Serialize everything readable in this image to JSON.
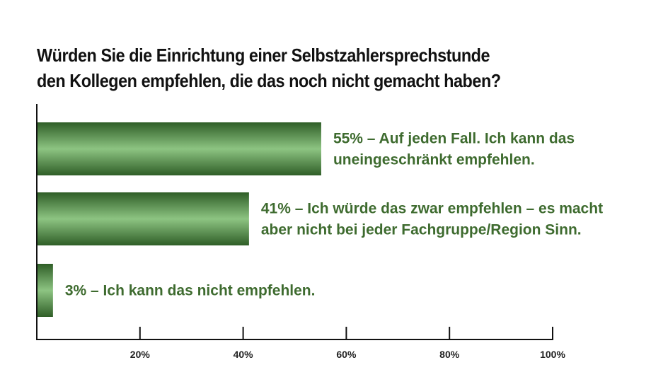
{
  "chart_data": {
    "type": "bar",
    "orientation": "horizontal",
    "title": "Würden Sie die Einrichtung einer Selbstzahlersprechstunde den Kollegen empfehlen, die das noch nicht gemacht haben?",
    "title_lines": [
      "Würden Sie die Einrichtung einer Selbstzahlersprechstunde",
      "den Kollegen empfehlen, die das noch nicht gemacht haben?"
    ],
    "categories": [
      "Auf jeden Fall. Ich kann das uneingeschränkt empfehlen.",
      "Ich würde das zwar empfehlen – es macht aber nicht bei jeder Fachgruppe/Region Sinn.",
      "Ich kann das nicht empfehlen."
    ],
    "values": [
      55,
      41,
      3
    ],
    "bar_labels": [
      [
        "55% – Auf jeden Fall. Ich kann das",
        "uneingeschränkt empfehlen."
      ],
      [
        "41% – Ich würde das zwar empfehlen – es macht",
        "aber nicht bei jeder Fachgruppe/Region Sinn."
      ],
      [
        "3% – Ich kann das nicht empfehlen."
      ]
    ],
    "xlim": [
      0,
      100
    ],
    "x_ticks": [
      20,
      40,
      60,
      80,
      100
    ],
    "x_tick_labels": [
      "20%",
      "40%",
      "60%",
      "80%",
      "100%"
    ],
    "xlabel": "",
    "ylabel": "",
    "grid": false,
    "bar_color": "#4f8a45",
    "bar_highlight": "#8dc482",
    "label_color": "#3e6b2f"
  }
}
